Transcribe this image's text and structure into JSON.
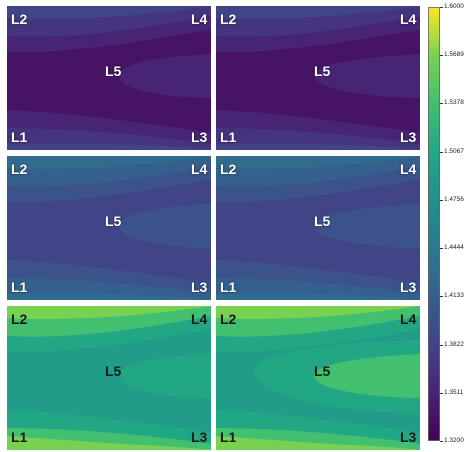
{
  "chart_data": {
    "type": "heatmap",
    "colormap": "viridis",
    "layout": {
      "rows": 3,
      "cols": 2
    },
    "colorbar": {
      "vmin": 1.32,
      "vmax": 1.6,
      "ticks": [
        "1.3200",
        "1.3511",
        "1.3822",
        "1.4133",
        "1.4444",
        "1.4756",
        "1.5067",
        "1.5378",
        "1.5689",
        "1.6000"
      ]
    },
    "panels": [
      {
        "bands": [
          1.3667,
          1.3511,
          1.3356,
          1.3356,
          1.3511,
          1.3667,
          1.3822
        ],
        "labels": {
          "L1": "L1",
          "L2": "L2",
          "L3": "L3",
          "L4": "L4",
          "L5": "L5"
        }
      },
      {
        "bands": [
          1.3667,
          1.3511,
          1.3356,
          1.3356,
          1.3511,
          1.3667,
          1.3822
        ],
        "labels": {
          "L1": "L1",
          "L2": "L2",
          "L3": "L3",
          "L4": "L4",
          "L5": "L5"
        }
      },
      {
        "bands": [
          1.4133,
          1.3978,
          1.3822,
          1.3822,
          1.3978,
          1.4133,
          1.4289
        ],
        "labels": {
          "L1": "L1",
          "L2": "L2",
          "L3": "L3",
          "L4": "L4",
          "L5": "L5"
        }
      },
      {
        "bands": [
          1.4133,
          1.3978,
          1.3822,
          1.3822,
          1.3978,
          1.4133,
          1.4289
        ],
        "labels": {
          "L1": "L1",
          "L2": "L2",
          "L3": "L3",
          "L4": "L4",
          "L5": "L5"
        }
      },
      {
        "bands": [
          1.5378,
          1.5067,
          1.4911,
          1.4911,
          1.5067,
          1.5378,
          1.5689
        ],
        "labels": {
          "L1": "L1",
          "L2": "L2",
          "L3": "L3",
          "L4": "L4",
          "L5": "L5"
        }
      },
      {
        "bands": [
          1.5689,
          1.5378,
          1.5067,
          1.4911,
          1.5067,
          1.5378,
          1.5689
        ],
        "labels": {
          "L1": "L1",
          "L2": "L2",
          "L3": "L3",
          "L4": "L4",
          "L5": "L5"
        }
      }
    ]
  }
}
